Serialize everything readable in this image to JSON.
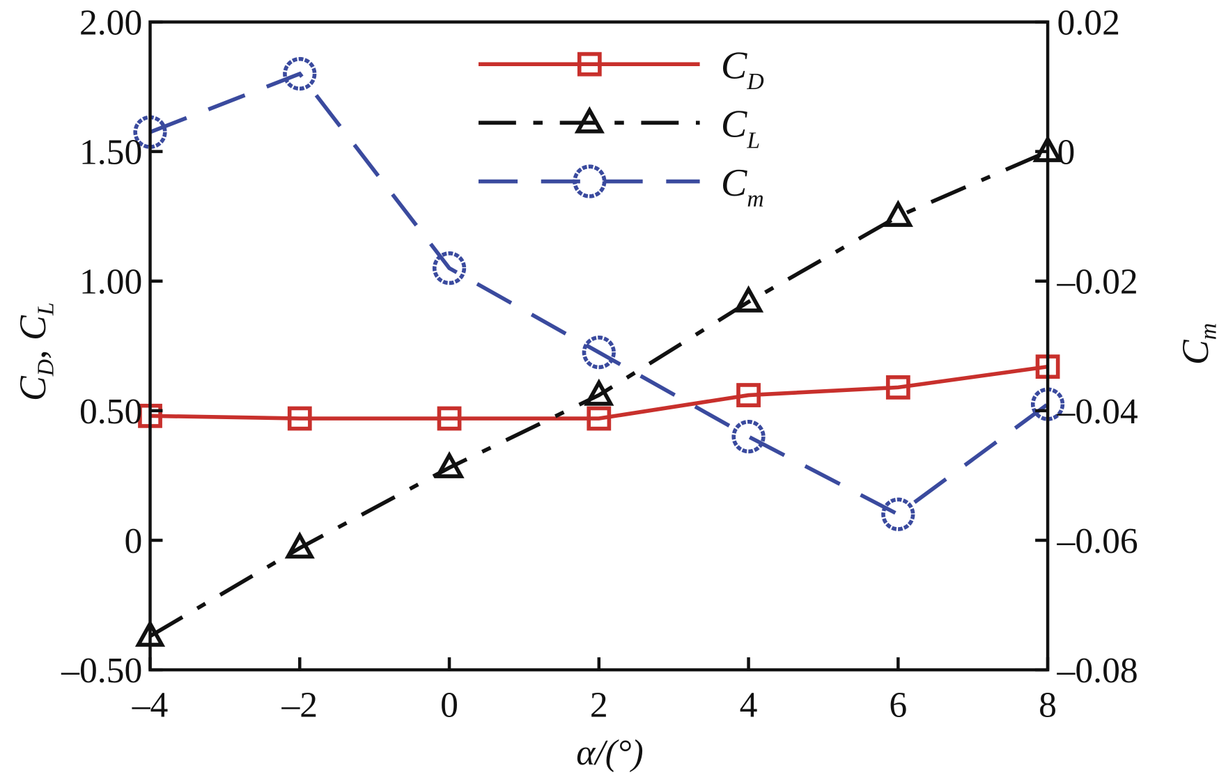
{
  "chart_data": {
    "type": "line",
    "x": [
      -4,
      -2,
      0,
      2,
      4,
      6,
      8
    ],
    "xlim": [
      -4,
      8
    ],
    "xticks": [
      "-4",
      "-2",
      "0",
      "2",
      "4",
      "6",
      "8"
    ],
    "xlabel": {
      "main": "α/(°)"
    },
    "ylim_left": [
      -0.5,
      2.0
    ],
    "yticks_left": [
      "-0.50",
      "0",
      "0.50",
      "1.00",
      "1.50",
      "2.00"
    ],
    "ylabel_left": {
      "c1": "C",
      "s1": "D",
      "sep": ", ",
      "c2": "C",
      "s2": "L"
    },
    "ylim_right": [
      -0.08,
      0.02
    ],
    "yticks_right": [
      "-0.08",
      "-0.06",
      "-0.04",
      "-0.02",
      "0",
      "0.02"
    ],
    "ylabel_right": {
      "c": "C",
      "s": "m"
    },
    "grid": false,
    "legend_position": "top-center",
    "series": [
      {
        "name": "C",
        "sub": "D",
        "axis": "left",
        "color": "#c8302c",
        "marker": "square",
        "line": "solid",
        "values": [
          0.48,
          0.47,
          0.47,
          0.47,
          0.56,
          0.59,
          0.67
        ]
      },
      {
        "name": "C",
        "sub": "L",
        "axis": "left",
        "color": "#111111",
        "marker": "triangle",
        "line": "dash-dot",
        "values": [
          -0.37,
          -0.03,
          0.28,
          0.56,
          0.92,
          1.25,
          1.5
        ]
      },
      {
        "name": "C",
        "sub": "m",
        "axis": "right",
        "color": "#3a4a9e",
        "marker": "circle",
        "line": "dashed",
        "values": [
          0.003,
          0.012,
          -0.018,
          -0.031,
          -0.044,
          -0.056,
          -0.039
        ]
      }
    ]
  }
}
